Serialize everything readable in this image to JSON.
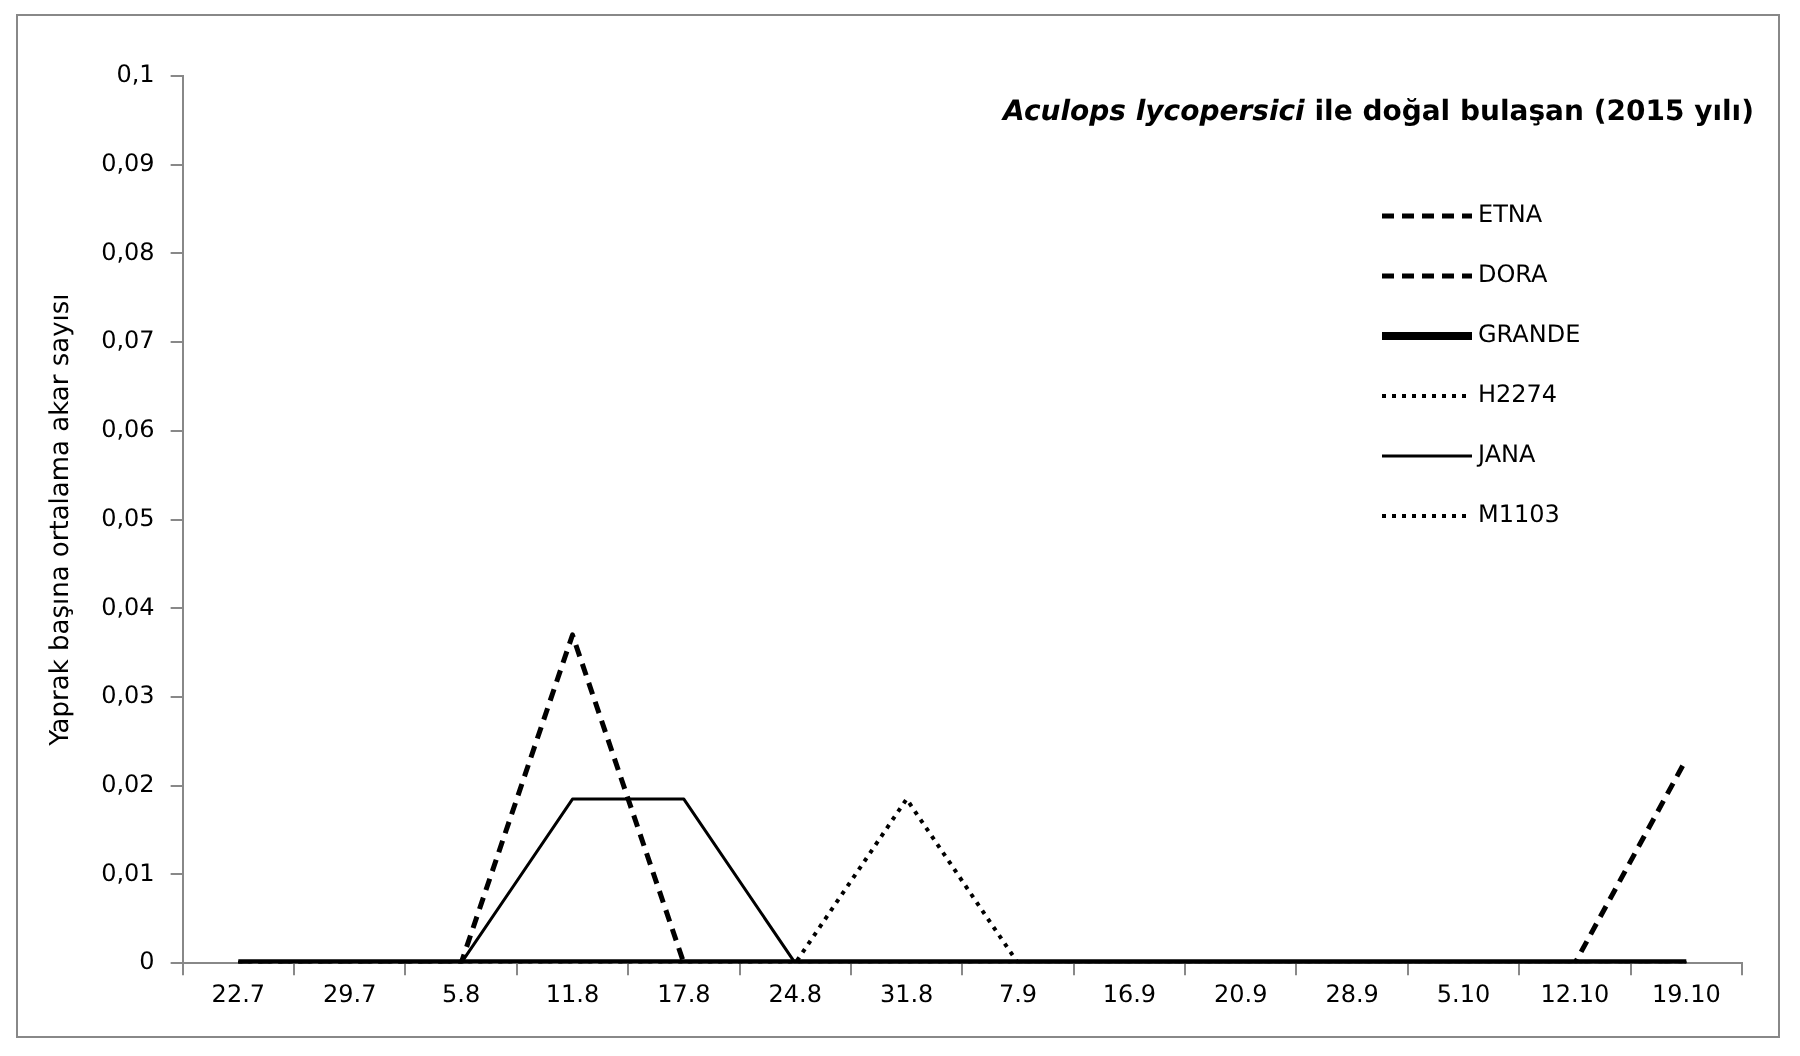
{
  "chart_data": {
    "type": "line",
    "title": "Aculops lycopersici ile doğal bulaşan (2015 yılı)",
    "ylabel": "Yaprak başına ortalama akar sayısı",
    "categories": [
      "22.7",
      "29.7",
      "5.8",
      "11.8",
      "17.8",
      "24.8",
      "31.8",
      "7.9",
      "16.9",
      "20.9",
      "28.9",
      "5.10",
      "12.10",
      "19.10"
    ],
    "series": [
      {
        "name": "ETNA",
        "color": "#000000",
        "line_style": "dashed",
        "values": [
          0,
          0,
          0,
          0.037,
          0,
          0,
          0,
          0,
          0,
          0,
          0,
          0,
          0,
          0.023
        ]
      },
      {
        "name": "DORA",
        "color": "#000000",
        "line_style": "dashed",
        "values": [
          0,
          0,
          0,
          0,
          0,
          0,
          0,
          0,
          0,
          0,
          0,
          0,
          0,
          0
        ]
      },
      {
        "name": "GRANDE",
        "color": "#000000",
        "line_style": "solid",
        "values": [
          0,
          0,
          0,
          0,
          0,
          0,
          0,
          0,
          0,
          0,
          0,
          0,
          0,
          0
        ]
      },
      {
        "name": "H2274",
        "color": "#000000",
        "line_style": "dotted",
        "values": [
          0,
          0,
          0,
          0,
          0,
          0,
          0.0185,
          0,
          0,
          0,
          0,
          0,
          0,
          0
        ]
      },
      {
        "name": "JANA",
        "color": "#000000",
        "line_style": "solid",
        "values": [
          0,
          0,
          0,
          0.0185,
          0.0185,
          0,
          0,
          0,
          0,
          0,
          0,
          0,
          0,
          0
        ]
      },
      {
        "name": "M1103",
        "color": "#000000",
        "line_style": "dotted",
        "values": [
          0,
          0,
          0,
          0,
          0,
          0,
          0,
          0,
          0,
          0,
          0,
          0,
          0,
          0
        ]
      }
    ],
    "ylim": [
      0,
      0.1
    ],
    "yticks": [
      0,
      {
        "value": 0.01,
        "label": "0,01"
      },
      {
        "value": 0.02,
        "label": "0,02"
      },
      {
        "value": 0.03,
        "label": "0,03"
      },
      {
        "value": 0.04,
        "label": "0,04"
      },
      {
        "value": 0.05,
        "label": "0,05"
      },
      {
        "value": 0.06,
        "label": "0,06"
      },
      {
        "value": 0.07,
        "label": "0,07"
      },
      {
        "value": 0.08,
        "label": "0,08"
      },
      {
        "value": 0.09,
        "label": "0,09"
      },
      {
        "value": 0.1,
        "label": "0,1"
      }
    ],
    "grid": false,
    "legend": "top right",
    "marker": "none"
  }
}
